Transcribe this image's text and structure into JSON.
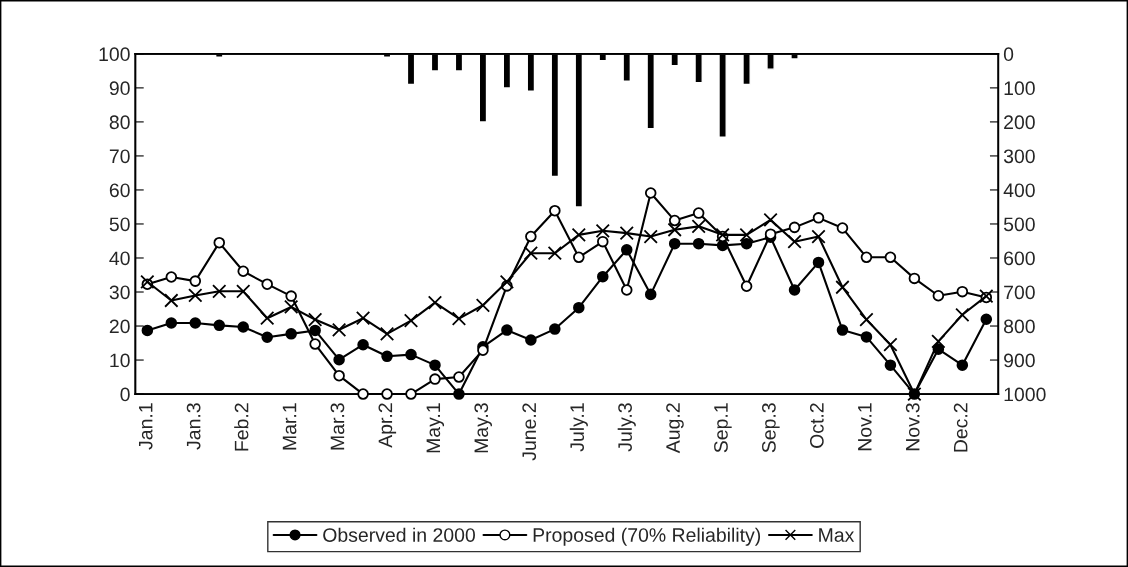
{
  "chart_data": {
    "type": "line",
    "categories": [
      "Jan.1",
      null,
      "Jan.3",
      null,
      "Feb.2",
      null,
      "Mar.1",
      null,
      "Mar.3",
      null,
      "Apr.2",
      null,
      "May.1",
      null,
      "May.3",
      null,
      "June.2",
      null,
      "July.1",
      null,
      "July.3",
      null,
      "Aug.2",
      null,
      "Sep.1",
      null,
      "Sep.3",
      null,
      "Oct.2",
      null,
      "Nov.1",
      null,
      "Nov.3",
      null,
      "Dec.2",
      null
    ],
    "series": [
      {
        "type": "bar",
        "axis": "y2",
        "color": "#000000",
        "values": [
          null,
          null,
          null,
          10,
          null,
          null,
          null,
          null,
          null,
          null,
          10,
          90,
          50,
          50,
          200,
          100,
          110,
          360,
          450,
          20,
          80,
          220,
          35,
          85,
          245,
          90,
          45,
          15,
          null,
          null,
          null,
          null,
          null,
          null,
          null,
          null
        ]
      },
      {
        "name": "Observed in 2000",
        "marker": "circle",
        "color": "#000000",
        "values": [
          18.7,
          20.9,
          20.9,
          20.2,
          19.7,
          16.7,
          17.7,
          18.7,
          10.1,
          14.5,
          11.1,
          11.6,
          8.5,
          0,
          13.9,
          18.8,
          15.9,
          19.1,
          25.4,
          34.5,
          42.4,
          29.3,
          44.2,
          44.2,
          43.7,
          44.2,
          46.1,
          30.6,
          38.7,
          18.8,
          16.8,
          8.5,
          0,
          13.2,
          8.5,
          22.0
        ]
      },
      {
        "name": "Proposed (70% Reliability)",
        "marker": "circle",
        "color": "#000000",
        "values": [
          32.3,
          34.4,
          33.2,
          44.5,
          36.1,
          32.3,
          28.8,
          14.7,
          5.4,
          0,
          0,
          0,
          4.4,
          5.0,
          12.9,
          31.8,
          46.3,
          53.9,
          40.2,
          44.8,
          30.6,
          59.1,
          51.0,
          53.2,
          46.3,
          31.7,
          47.0,
          49.0,
          51.8,
          48.8,
          40.2,
          40.2,
          34.0,
          28.9,
          30.1,
          28.4
        ]
      },
      {
        "name": "Max",
        "marker": "cross",
        "color": "#000000",
        "values": [
          33,
          27.5,
          29,
          30.2,
          30.2,
          22.3,
          25.6,
          21.9,
          18.9,
          22.3,
          17.7,
          21.6,
          26.9,
          22.2,
          26.1,
          33.0,
          41.4,
          41.4,
          46.8,
          48.0,
          47.3,
          46.3,
          48.3,
          49.3,
          46.8,
          46.8,
          51.2,
          44.8,
          46.3,
          31.4,
          21.9,
          14.5,
          0,
          15.5,
          23.3,
          28.8
        ]
      }
    ],
    "ylim": [
      0,
      100
    ],
    "yticks": [
      0,
      10,
      20,
      30,
      40,
      50,
      60,
      70,
      80,
      90,
      100
    ],
    "y2lim": [
      1000,
      0
    ],
    "y2ticks": [
      0,
      100,
      200,
      300,
      400,
      500,
      600,
      700,
      800,
      900,
      1000
    ],
    "legend": "bottom",
    "grid": false
  }
}
